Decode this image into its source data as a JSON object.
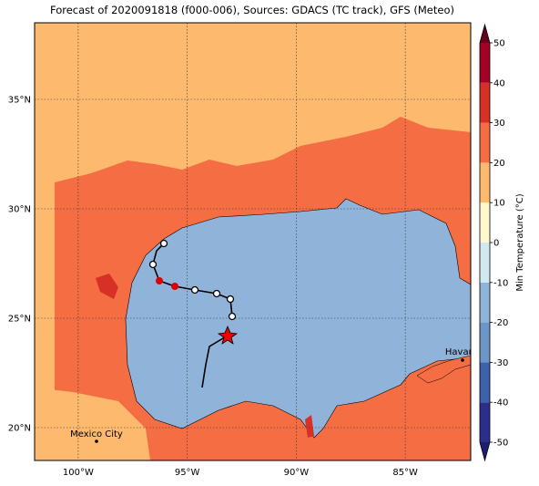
{
  "chart_data": {
    "type": "map",
    "title": "Forecast of 2020091818 (f000-006), Sources: GDACS (TC track), GFS (Meteo)",
    "xlim": [
      -102,
      -82
    ],
    "ylim": [
      18.5,
      38.5
    ],
    "xticks": [
      {
        "value": -100,
        "label": "100°W"
      },
      {
        "value": -95,
        "label": "95°W"
      },
      {
        "value": -90,
        "label": "90°W"
      },
      {
        "value": -85,
        "label": "85°W"
      }
    ],
    "yticks": [
      {
        "value": 20,
        "label": "20°N"
      },
      {
        "value": 25,
        "label": "25°N"
      },
      {
        "value": 30,
        "label": "30°N"
      },
      {
        "value": 35,
        "label": "35°N"
      }
    ],
    "grid": true,
    "cities": [
      "Mexico City",
      "Havana"
    ],
    "colorbar": {
      "label": "Min Temperature (°C)",
      "lim": [
        -50,
        50
      ],
      "ticks": [
        -50,
        -40,
        -30,
        -20,
        -10,
        0,
        10,
        20,
        30,
        40,
        50
      ],
      "colors": [
        "#2b2f8c",
        "#3d62ab",
        "#6b96c6",
        "#90b3d9",
        "#cfe8f1",
        "#fff8cc",
        "#fdb96e",
        "#f46d43",
        "#d73027",
        "#a50026"
      ]
    }
  }
}
